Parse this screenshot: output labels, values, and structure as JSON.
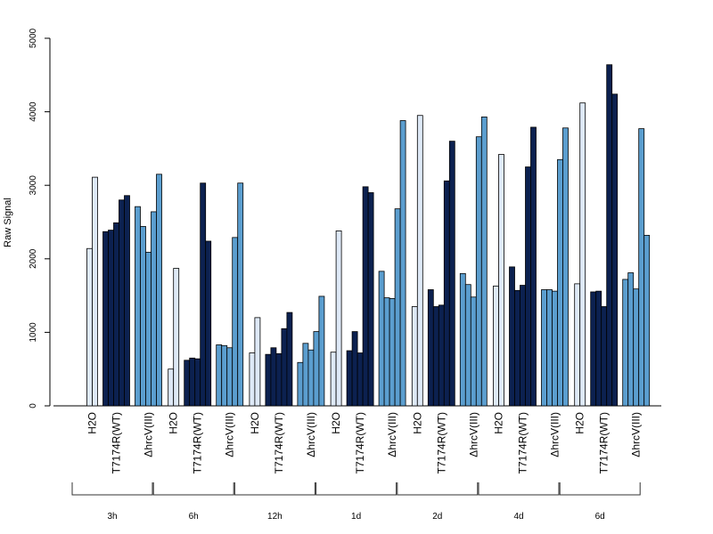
{
  "chart_data": {
    "type": "bar",
    "ylabel": "Raw Signal",
    "ylim": [
      0,
      5000
    ],
    "yticks": [
      "0",
      "1000",
      "2000",
      "3000",
      "4000",
      "5000"
    ],
    "conditions": [
      "H2O",
      "T7174R(WT)",
      "ΔhrcV(III)"
    ],
    "condition_colors": [
      "#dee9f7",
      "#0c2150",
      "#5b9ecf"
    ],
    "timepoints": [
      "3h",
      "6h",
      "12h",
      "1d",
      "2d",
      "4d",
      "6d"
    ],
    "groups": [
      {
        "time": "3h",
        "values": [
          [
            2140,
            3110
          ],
          [
            2370,
            2390,
            2490,
            2800,
            2860
          ],
          [
            2710,
            2440,
            2090,
            2640,
            3150
          ]
        ]
      },
      {
        "time": "6h",
        "values": [
          [
            500,
            1870
          ],
          [
            620,
            650,
            640,
            3030,
            2240
          ],
          [
            830,
            820,
            790,
            2290,
            3030
          ]
        ]
      },
      {
        "time": "12h",
        "values": [
          [
            720,
            1200
          ],
          [
            700,
            790,
            710,
            1050,
            1270
          ],
          [
            590,
            850,
            760,
            1010,
            1490
          ]
        ]
      },
      {
        "time": "1d",
        "values": [
          [
            730,
            2380
          ],
          [
            750,
            1010,
            720,
            2980,
            2900
          ],
          [
            1830,
            1470,
            1460,
            2680,
            3880
          ]
        ]
      },
      {
        "time": "2d",
        "values": [
          [
            1350,
            3950
          ],
          [
            1580,
            1350,
            1370,
            3060,
            3600
          ],
          [
            1800,
            1650,
            1480,
            3660,
            3930
          ]
        ]
      },
      {
        "time": "4d",
        "values": [
          [
            1630,
            3420
          ],
          [
            1890,
            1570,
            1640,
            3250,
            3790
          ],
          [
            1580,
            1580,
            1560,
            3350,
            3780
          ]
        ]
      },
      {
        "time": "6d",
        "values": [
          [
            1660,
            4120
          ],
          [
            1550,
            1560,
            1350,
            4640,
            4240
          ],
          [
            1720,
            1810,
            1590,
            3770,
            2320
          ]
        ]
      }
    ]
  }
}
